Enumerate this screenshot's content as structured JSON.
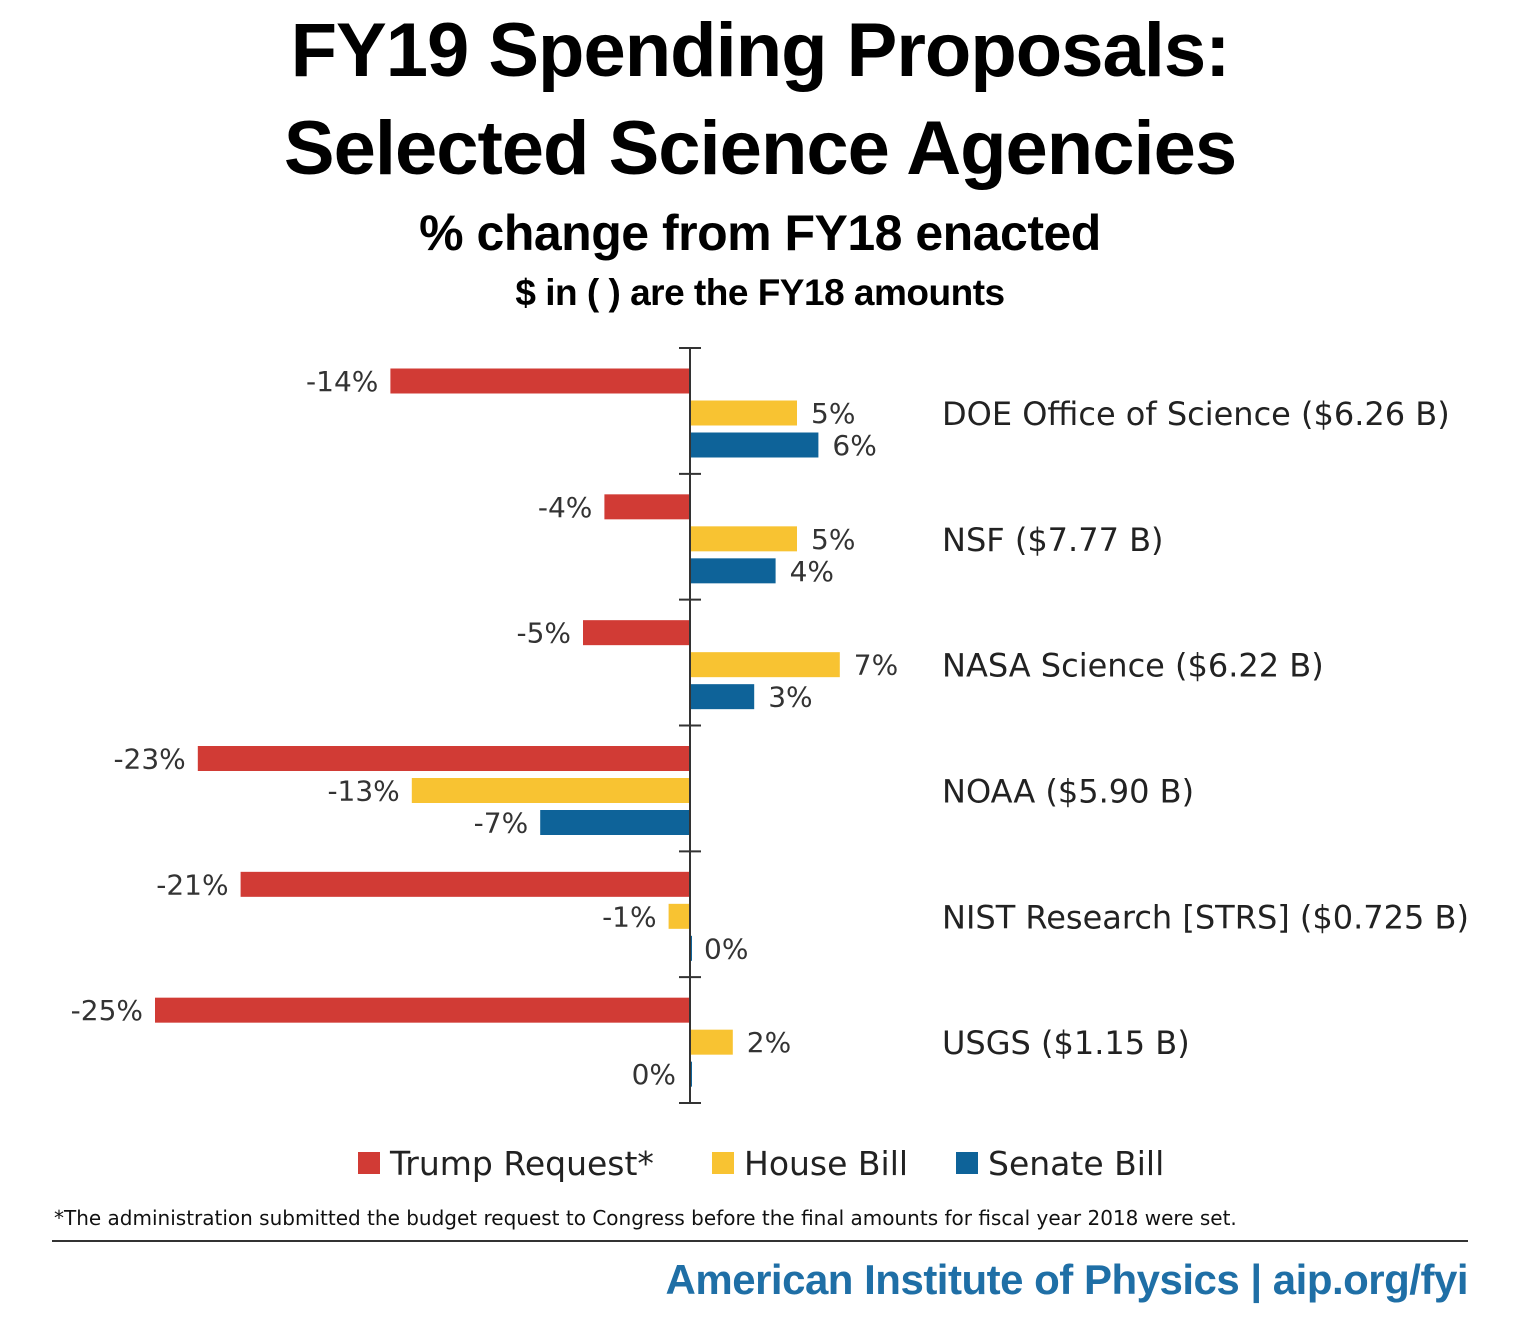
{
  "chart_data": {
    "type": "bar",
    "orientation": "horizontal",
    "title": "FY19 Spending Proposals: Selected Science Agencies",
    "title_lines": [
      "FY19 Spending Proposals:",
      "Selected Science Agencies"
    ],
    "subtitle": "% change from FY18 enacted",
    "subtitle2": "$ in ( ) are the FY18 amounts",
    "categories": [
      "DOE Office of Science ($6.26 B)",
      "NSF ($7.77 B)",
      "NASA Science ($6.22 B)",
      "NOAA ($5.90 B)",
      "NIST Research [STRS] ($0.725 B)",
      "USGS ($1.15 B)"
    ],
    "series": [
      {
        "name": "Trump Request*",
        "color": "#d13b35",
        "values": [
          -14,
          -4,
          -5,
          -23,
          -21,
          -25
        ],
        "labels": [
          "-14%",
          "-4%",
          "-5%",
          "-23%",
          "-21%",
          "-25%"
        ]
      },
      {
        "name": "House Bill",
        "color": "#f8c332",
        "values": [
          5,
          5,
          7,
          -13,
          -1,
          2
        ],
        "labels": [
          "5%",
          "5%",
          "7%",
          "-13%",
          "-1%",
          "2%"
        ]
      },
      {
        "name": "Senate Bill",
        "color": "#0e6399",
        "values": [
          6,
          4,
          3,
          -7,
          0,
          0
        ],
        "labels": [
          "6%",
          "4%",
          "3%",
          "-7%",
          "0%",
          "0%"
        ]
      }
    ],
    "xlim": [
      -25,
      7
    ],
    "xlabel": "",
    "ylabel": "",
    "grid": false,
    "legend_position": "bottom"
  },
  "footnote": "*The administration submitted the budget request to Congress before the final amounts for fiscal year 2018 were set.",
  "credit": "American Institute of Physics | aip.org/fyi"
}
